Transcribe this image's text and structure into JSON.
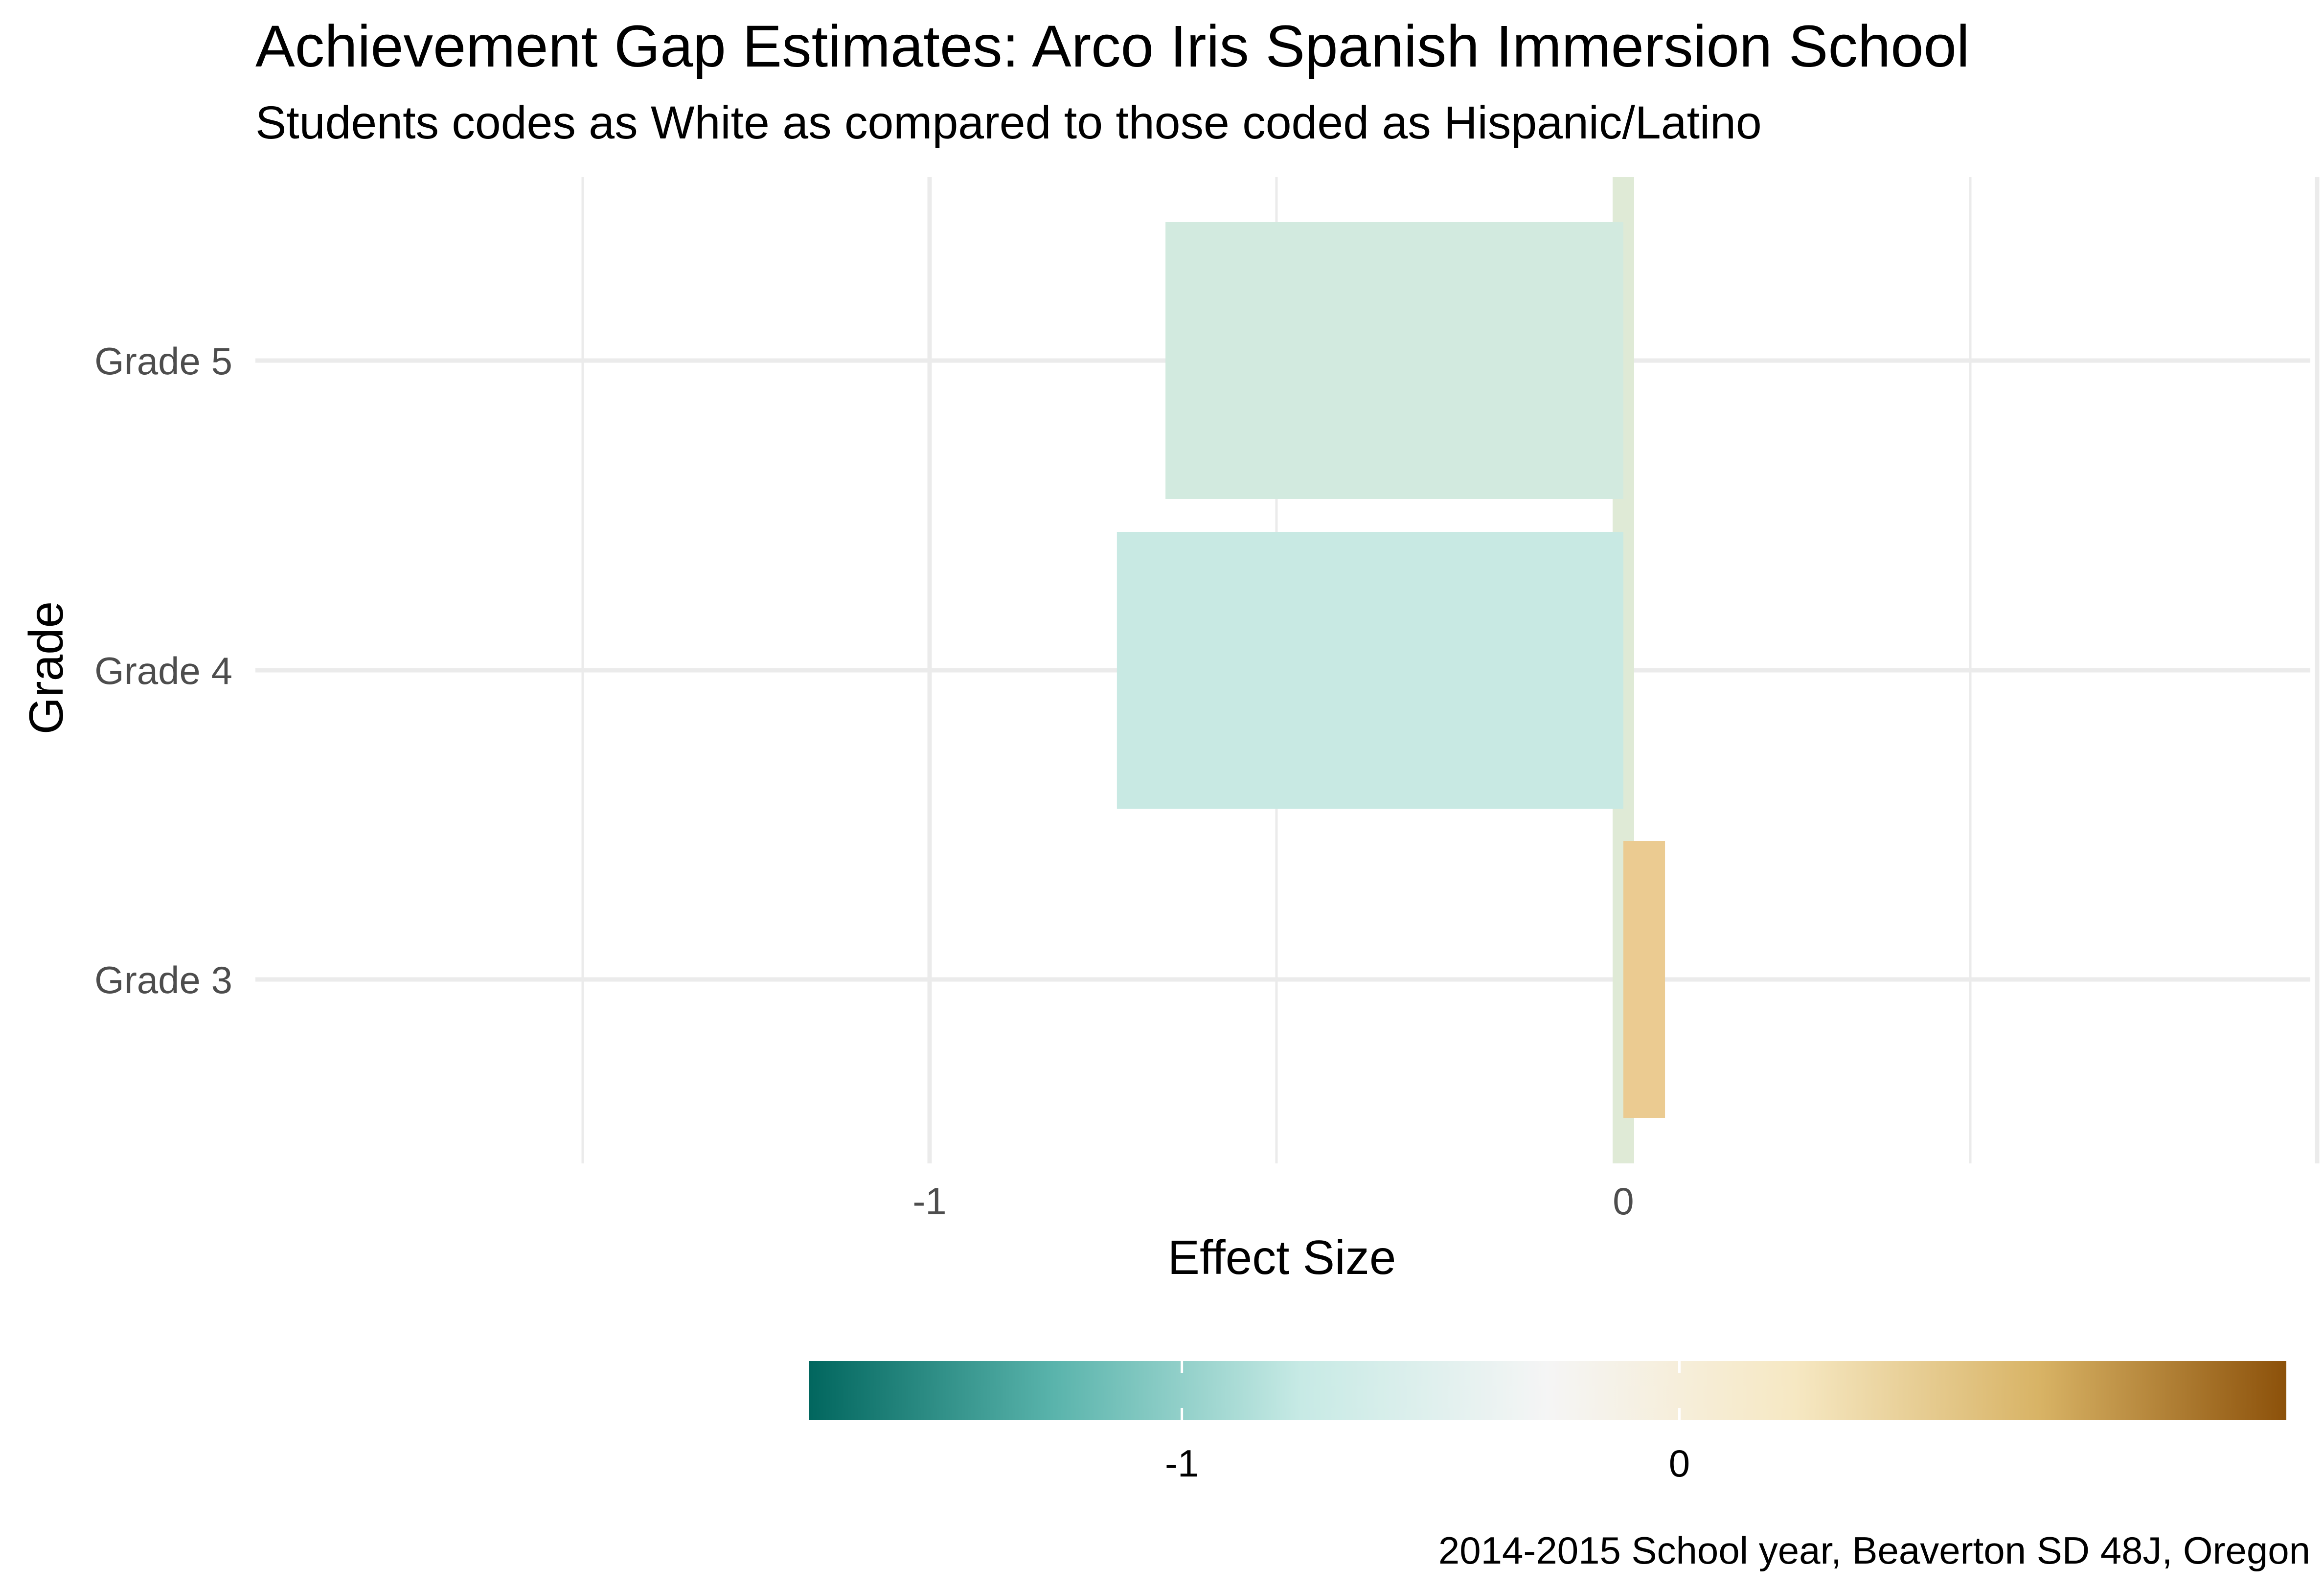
{
  "chart_data": {
    "type": "bar",
    "orientation": "horizontal",
    "title": "Achievement Gap Estimates: Arco Iris Spanish Immersion School",
    "subtitle": "Students codes as White as compared to those coded as Hispanic/Latino",
    "caption": "2014-2015 School year, Beaverton SD 48J, Oregon",
    "xlabel": "Effect Size",
    "ylabel": "Grade",
    "categories": [
      "Grade 3",
      "Grade 4",
      "Grade 5"
    ],
    "values": [
      0.06,
      -0.73,
      -0.66
    ],
    "reference_value": 0,
    "xlim": [
      -1.5,
      1.0
    ],
    "x_ticks": [
      {
        "value": -1,
        "label": "-1"
      },
      {
        "value": 0,
        "label": "0"
      }
    ],
    "grid": true,
    "legend": {
      "type": "colorbar",
      "placement": "bottom",
      "range": [
        -1.75,
        1.22
      ],
      "ticks": [
        {
          "value": -1,
          "label": "-1"
        },
        {
          "value": 0,
          "label": "0"
        }
      ],
      "colors": [
        "#01665e",
        "#5ab4ac",
        "#c7eae5",
        "#f5f5f5",
        "#f6e8c3",
        "#d8b365",
        "#8c510a"
      ]
    },
    "colors": {
      "grade_3": "#ebcb91",
      "grade_4": "#c8e9e3",
      "grade_5": "#d2eadf",
      "reference_band": "#dfead6",
      "grid": "#ebebeb"
    }
  }
}
